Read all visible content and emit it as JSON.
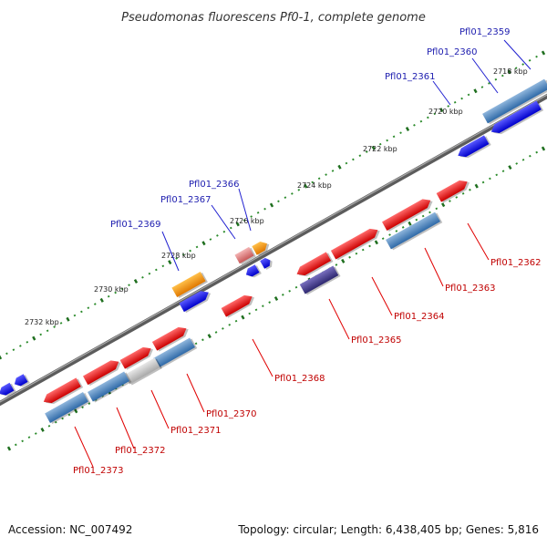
{
  "title": "Pseudomonas fluorescens Pf0-1, complete genome",
  "footer": {
    "accession": "Accession: NC_007492",
    "summary": "Topology: circular; Length: 6,438,405 bp; Genes: 5,816"
  },
  "scale_labels": [
    "2718 kbp",
    "2720 kbp",
    "2722 kbp",
    "2724 kbp",
    "2726 kbp",
    "2728 kbp",
    "2730 kbp",
    "2732 kbp"
  ],
  "gene_labels": {
    "pfl2359": "Pfl01_2359",
    "pfl2360": "Pfl01_2360",
    "pfl2361": "Pfl01_2361",
    "pfl2366": "Pfl01_2366",
    "pfl2367": "Pfl01_2367",
    "pfl2369": "Pfl01_2369",
    "pfl2362": "Pfl01_2362",
    "pfl2363": "Pfl01_2363",
    "pfl2364": "Pfl01_2364",
    "pfl2365": "Pfl01_2365",
    "pfl2368": "Pfl01_2368",
    "pfl2370": "Pfl01_2370",
    "pfl2371": "Pfl01_2371",
    "pfl2372": "Pfl01_2372",
    "pfl2373": "Pfl01_2373"
  },
  "colors": {
    "backbone": "#777777",
    "forward_gene": "#ee1111",
    "reverse_gene": "#1111ee",
    "cds_steelblue": "#3f7fbf",
    "orange_gene": "#ff9900",
    "pink_gene": "#e07a7a",
    "purple_gene": "#4a3f8f",
    "grey_gene": "#bbbbbb",
    "tick": "#2a8a2a"
  }
}
